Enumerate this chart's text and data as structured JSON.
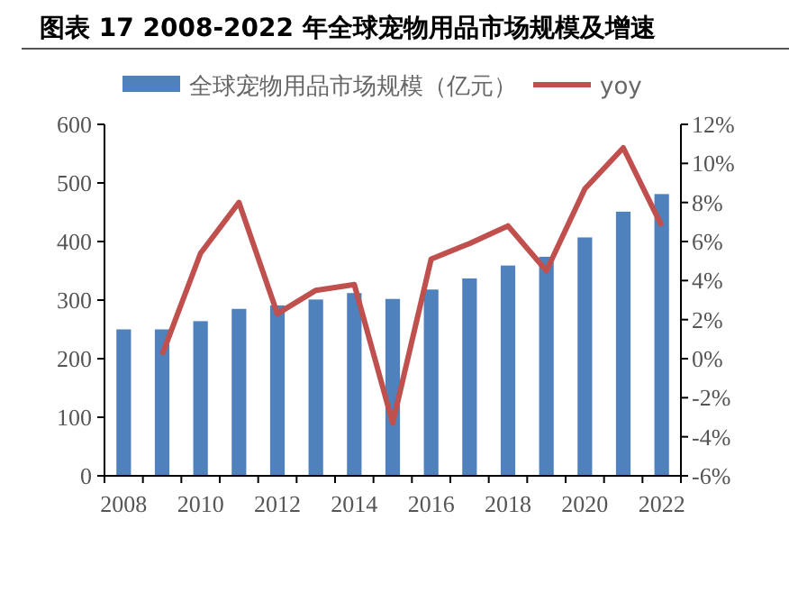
{
  "chart_data": {
    "type": "bar",
    "title": "图表 17 2008-2022 年全球宠物用品市场规模及增速",
    "categories": [
      "2008",
      null,
      "2010",
      null,
      "2012",
      null,
      "2014",
      null,
      "2016",
      null,
      "2018",
      null,
      "2020",
      null,
      "2022"
    ],
    "series": [
      {
        "name": "全球宠物用品市场规模（亿元）",
        "color": "#4f81bd",
        "values": [
          250,
          250,
          264,
          285,
          291,
          301,
          312,
          302,
          318,
          337,
          359,
          374,
          407,
          451,
          481
        ]
      },
      {
        "name": "yoy",
        "type": "line",
        "axis": "y2",
        "color": "#c0504d",
        "values": [
          null,
          0.2,
          5.4,
          8.0,
          2.3,
          3.5,
          3.8,
          -3.3,
          5.1,
          5.9,
          6.8,
          4.5,
          8.7,
          10.8,
          6.8
        ]
      }
    ],
    "ylim": [
      0,
      600
    ],
    "yticks": [
      0,
      100,
      200,
      300,
      400,
      500,
      600
    ],
    "y2lim": [
      -6,
      12
    ],
    "y2ticks": [
      {
        "value": -6,
        "label": "-6%"
      },
      {
        "value": -4,
        "label": "-4%"
      },
      {
        "value": -2,
        "label": "-2%"
      },
      {
        "value": 0,
        "label": "0%"
      },
      {
        "value": 2,
        "label": "2%"
      },
      {
        "value": 4,
        "label": "4%"
      },
      {
        "value": 6,
        "label": "6%"
      },
      {
        "value": 8,
        "label": "8%"
      },
      {
        "value": 10,
        "label": "10%"
      },
      {
        "value": 12,
        "label": "12%"
      }
    ],
    "legend": "top",
    "marker": "none"
  }
}
